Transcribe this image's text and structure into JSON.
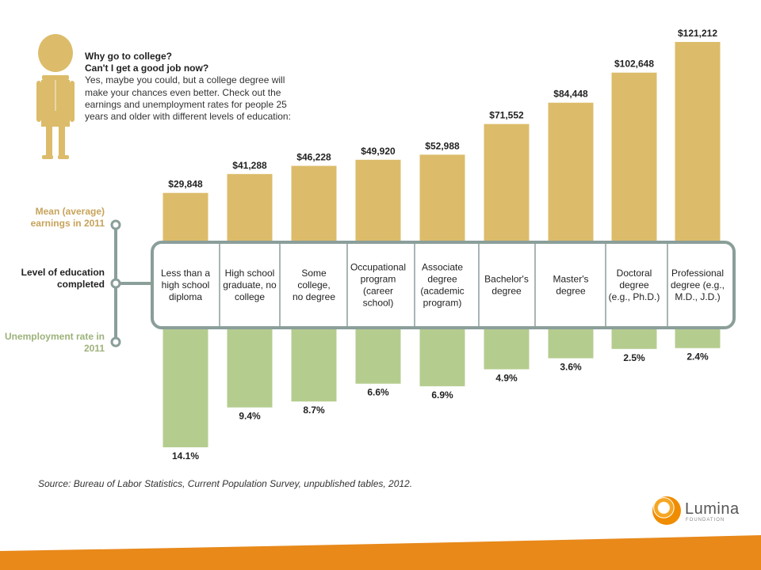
{
  "intro": {
    "line1": "Why go to college?",
    "line2": "Can't I get a good job now?",
    "body": "Yes, maybe you could, but a college degree will make your chances even better. Check out the earnings and unemployment rates for people 25 years and older with different levels of education:"
  },
  "side_labels": {
    "earnings": "Mean (average) earnings in 2011",
    "level": "Level of education completed",
    "unemployment": "Unemployment rate in 2011"
  },
  "source": "Source: Bureau of Labor Statistics, Current Population Survey, unpublished tables, 2012.",
  "logo": {
    "name": "Lumina",
    "sub": "FOUNDATION"
  },
  "colors": {
    "earnings": "#dcbc6a",
    "unemployment": "#b5cc8f",
    "frame": "#8a9e9a",
    "person": "#dcbc6a",
    "footer": "#e8891a"
  },
  "icons": {
    "person": "person-figure-icon",
    "logo": "lumina-logo-icon"
  },
  "chart_data": {
    "type": "bar",
    "categories": [
      [
        "Less than a",
        "high school",
        "diploma"
      ],
      [
        "High school",
        "graduate, no",
        "college"
      ],
      [
        "Some",
        "college,",
        "no degree"
      ],
      [
        "Occupational",
        "program",
        "(career",
        "school)"
      ],
      [
        "Associate",
        "degree",
        "(academic",
        "program)"
      ],
      [
        "Bachelor's",
        "degree"
      ],
      [
        "Master's",
        "degree"
      ],
      [
        "Doctoral",
        "degree",
        "(e.g., Ph.D.)"
      ],
      [
        "Professional",
        "degree (e.g.,",
        "M.D., J.D.)"
      ]
    ],
    "series": [
      {
        "name": "Mean (average) earnings in 2011",
        "values": [
          29848,
          41288,
          46228,
          49920,
          52988,
          71552,
          84448,
          102648,
          121212
        ],
        "labels": [
          "$29,848",
          "$41,288",
          "$46,228",
          "$49,920",
          "$52,988",
          "$71,552",
          "$84,448",
          "$102,648",
          "$121,212"
        ]
      },
      {
        "name": "Unemployment rate in 2011",
        "values": [
          14.1,
          9.4,
          8.7,
          6.6,
          6.9,
          4.9,
          3.6,
          2.5,
          2.4
        ],
        "labels": [
          "14.1%",
          "9.4%",
          "8.7%",
          "6.6%",
          "6.9%",
          "4.9%",
          "3.6%",
          "2.5%",
          "2.4%"
        ]
      }
    ]
  }
}
